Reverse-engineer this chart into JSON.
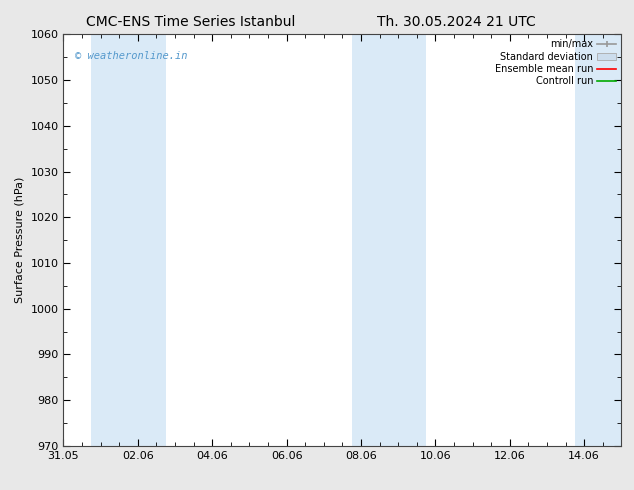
{
  "title_left": "CMC-ENS Time Series Istanbul",
  "title_right": "Th. 30.05.2024 21 UTC",
  "ylabel": "Surface Pressure (hPa)",
  "ylim": [
    970,
    1060
  ],
  "yticks": [
    970,
    980,
    990,
    1000,
    1010,
    1020,
    1030,
    1040,
    1050,
    1060
  ],
  "xlim_start": 0.0,
  "xlim_end": 15.0,
  "xtick_labels": [
    "31.05",
    "02.06",
    "04.06",
    "06.06",
    "08.06",
    "10.06",
    "12.06",
    "14.06"
  ],
  "xtick_positions": [
    0,
    2,
    4,
    6,
    8,
    10,
    12,
    14
  ],
  "minor_xtick_positions": [
    0,
    0.5,
    1,
    1.5,
    2,
    2.5,
    3,
    3.5,
    4,
    4.5,
    5,
    5.5,
    6,
    6.5,
    7,
    7.5,
    8,
    8.5,
    9,
    9.5,
    10,
    10.5,
    11,
    11.5,
    12,
    12.5,
    13,
    13.5,
    14,
    14.5,
    15
  ],
  "shaded_bands": [
    {
      "x_start": 0.75,
      "x_end": 2.75
    },
    {
      "x_start": 7.75,
      "x_end": 9.75
    },
    {
      "x_start": 13.75,
      "x_end": 15.0
    }
  ],
  "band_color": "#daeaf7",
  "watermark_text": "© weatheronline.in",
  "watermark_color": "#5599cc",
  "watermark_fontsize": 7.5,
  "legend_labels": [
    "min/max",
    "Standard deviation",
    "Ensemble mean run",
    "Controll run"
  ],
  "legend_colors_lines": [
    "#999999",
    "#bbccdd",
    "#ff0000",
    "#00aa00"
  ],
  "background_color": "#ffffff",
  "outer_bg_color": "#e8e8e8",
  "title_fontsize": 10,
  "axis_fontsize": 8,
  "tick_fontsize": 8,
  "legend_fontsize": 7
}
